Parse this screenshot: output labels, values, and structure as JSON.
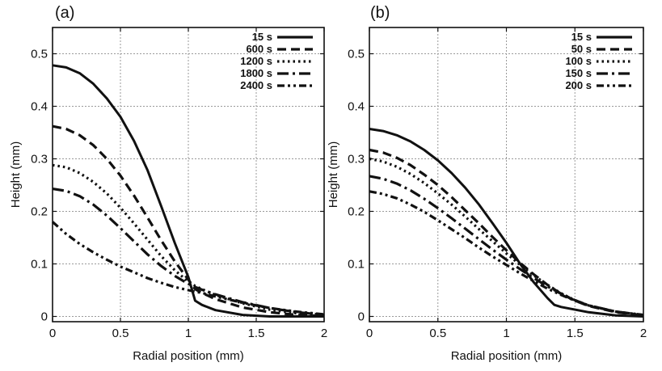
{
  "chart_data": [
    {
      "type": "line",
      "panel_label": "(a)",
      "xlabel": "Radial position (mm)",
      "ylabel": "Height (mm)",
      "xlim": [
        0,
        2
      ],
      "ylim": [
        -0.01,
        0.55
      ],
      "xticks": [
        0,
        0.5,
        1,
        1.5,
        2
      ],
      "xtick_labels": [
        "0",
        "0.5",
        "1",
        "1.5",
        "2"
      ],
      "yticks": [
        0,
        0.1,
        0.2,
        0.3,
        0.4,
        0.5
      ],
      "ytick_labels": [
        "0",
        "0.1",
        "0.2",
        "0.3",
        "0.4",
        "0.5"
      ],
      "grid": true,
      "legend_position": "top-right",
      "series": [
        {
          "name": "15 s",
          "style": "solid",
          "x": [
            0,
            0.1,
            0.2,
            0.3,
            0.4,
            0.5,
            0.6,
            0.7,
            0.8,
            0.9,
            1.0,
            1.05,
            1.1,
            1.2,
            1.4,
            1.6,
            1.8,
            2.0
          ],
          "y": [
            0.478,
            0.474,
            0.463,
            0.443,
            0.415,
            0.38,
            0.334,
            0.278,
            0.21,
            0.14,
            0.075,
            0.03,
            0.022,
            0.012,
            0.003,
            0.0,
            0.0,
            0.0
          ]
        },
        {
          "name": "600 s",
          "style": "dash",
          "x": [
            0,
            0.1,
            0.2,
            0.3,
            0.4,
            0.5,
            0.6,
            0.7,
            0.8,
            0.9,
            1.0,
            1.05,
            1.1,
            1.2,
            1.4,
            1.6,
            1.8,
            2.0
          ],
          "y": [
            0.362,
            0.357,
            0.345,
            0.326,
            0.3,
            0.268,
            0.23,
            0.188,
            0.145,
            0.105,
            0.07,
            0.052,
            0.045,
            0.033,
            0.017,
            0.008,
            0.003,
            0.001
          ]
        },
        {
          "name": "1200 s",
          "style": "dot",
          "x": [
            0,
            0.1,
            0.2,
            0.3,
            0.4,
            0.5,
            0.6,
            0.7,
            0.8,
            0.9,
            1.0,
            1.05,
            1.1,
            1.2,
            1.4,
            1.6,
            1.8,
            2.0
          ],
          "y": [
            0.288,
            0.284,
            0.273,
            0.256,
            0.234,
            0.207,
            0.177,
            0.146,
            0.115,
            0.088,
            0.066,
            0.058,
            0.052,
            0.041,
            0.025,
            0.013,
            0.006,
            0.002
          ]
        },
        {
          "name": "1800 s",
          "style": "dashdot",
          "x": [
            0,
            0.1,
            0.2,
            0.3,
            0.4,
            0.5,
            0.6,
            0.7,
            0.8,
            0.9,
            1.0,
            1.05,
            1.1,
            1.2,
            1.4,
            1.6,
            1.8,
            2.0
          ],
          "y": [
            0.243,
            0.239,
            0.229,
            0.213,
            0.192,
            0.168,
            0.143,
            0.118,
            0.096,
            0.077,
            0.062,
            0.056,
            0.051,
            0.042,
            0.027,
            0.016,
            0.008,
            0.003
          ]
        },
        {
          "name": "2400 s",
          "style": "dashdotdot",
          "x": [
            0,
            0.1,
            0.2,
            0.3,
            0.4,
            0.5,
            0.6,
            0.7,
            0.8,
            0.9,
            1.0,
            1.05,
            1.1,
            1.2,
            1.4,
            1.6,
            1.8,
            2.0
          ],
          "y": [
            0.18,
            0.157,
            0.138,
            0.122,
            0.108,
            0.095,
            0.084,
            0.073,
            0.064,
            0.056,
            0.05,
            0.047,
            0.045,
            0.038,
            0.026,
            0.016,
            0.009,
            0.004
          ]
        }
      ]
    },
    {
      "type": "line",
      "panel_label": "(b)",
      "xlabel": "Radial position (mm)",
      "ylabel": "Height (mm)",
      "xlim": [
        0,
        2
      ],
      "ylim": [
        -0.01,
        0.55
      ],
      "xticks": [
        0,
        0.5,
        1,
        1.5,
        2
      ],
      "xtick_labels": [
        "0",
        "0.5",
        "1",
        "1.5",
        "2"
      ],
      "yticks": [
        0,
        0.1,
        0.2,
        0.3,
        0.4,
        0.5
      ],
      "ytick_labels": [
        "0",
        "0.1",
        "0.2",
        "0.3",
        "0.4",
        "0.5"
      ],
      "grid": true,
      "legend_position": "top-right",
      "series": [
        {
          "name": "15 s",
          "style": "solid",
          "x": [
            0,
            0.1,
            0.2,
            0.3,
            0.4,
            0.5,
            0.6,
            0.7,
            0.8,
            0.9,
            1.0,
            1.1,
            1.2,
            1.3,
            1.35,
            1.4,
            1.6,
            1.8,
            2.0
          ],
          "y": [
            0.357,
            0.353,
            0.345,
            0.333,
            0.317,
            0.297,
            0.273,
            0.245,
            0.213,
            0.177,
            0.14,
            0.1,
            0.065,
            0.035,
            0.022,
            0.018,
            0.008,
            0.002,
            0.0
          ]
        },
        {
          "name": "50 s",
          "style": "dash",
          "x": [
            0,
            0.1,
            0.2,
            0.3,
            0.4,
            0.5,
            0.6,
            0.7,
            0.8,
            0.9,
            1.0,
            1.1,
            1.2,
            1.3,
            1.4,
            1.5,
            1.6,
            1.8,
            2.0
          ],
          "y": [
            0.317,
            0.312,
            0.302,
            0.288,
            0.27,
            0.25,
            0.227,
            0.202,
            0.177,
            0.151,
            0.126,
            0.102,
            0.08,
            0.06,
            0.043,
            0.03,
            0.02,
            0.008,
            0.002
          ]
        },
        {
          "name": "100 s",
          "style": "dot",
          "x": [
            0,
            0.1,
            0.2,
            0.3,
            0.4,
            0.5,
            0.6,
            0.7,
            0.8,
            0.9,
            1.0,
            1.1,
            1.2,
            1.3,
            1.4,
            1.5,
            1.6,
            1.8,
            2.0
          ],
          "y": [
            0.3,
            0.295,
            0.285,
            0.271,
            0.254,
            0.234,
            0.213,
            0.19,
            0.166,
            0.143,
            0.12,
            0.098,
            0.078,
            0.06,
            0.044,
            0.031,
            0.021,
            0.009,
            0.002
          ]
        },
        {
          "name": "150 s",
          "style": "dashdot",
          "x": [
            0,
            0.1,
            0.2,
            0.3,
            0.4,
            0.5,
            0.6,
            0.7,
            0.8,
            0.9,
            1.0,
            1.1,
            1.2,
            1.3,
            1.4,
            1.5,
            1.6,
            1.8,
            2.0
          ],
          "y": [
            0.267,
            0.262,
            0.253,
            0.24,
            0.224,
            0.206,
            0.187,
            0.167,
            0.147,
            0.127,
            0.108,
            0.09,
            0.073,
            0.057,
            0.043,
            0.031,
            0.021,
            0.009,
            0.003
          ]
        },
        {
          "name": "200 s",
          "style": "dashdotdot",
          "x": [
            0,
            0.1,
            0.2,
            0.3,
            0.4,
            0.5,
            0.6,
            0.7,
            0.8,
            0.9,
            1.0,
            1.1,
            1.2,
            1.3,
            1.4,
            1.5,
            1.6,
            1.8,
            2.0
          ],
          "y": [
            0.238,
            0.233,
            0.225,
            0.213,
            0.199,
            0.183,
            0.166,
            0.149,
            0.131,
            0.114,
            0.098,
            0.082,
            0.067,
            0.053,
            0.041,
            0.03,
            0.021,
            0.009,
            0.003
          ]
        }
      ]
    }
  ]
}
